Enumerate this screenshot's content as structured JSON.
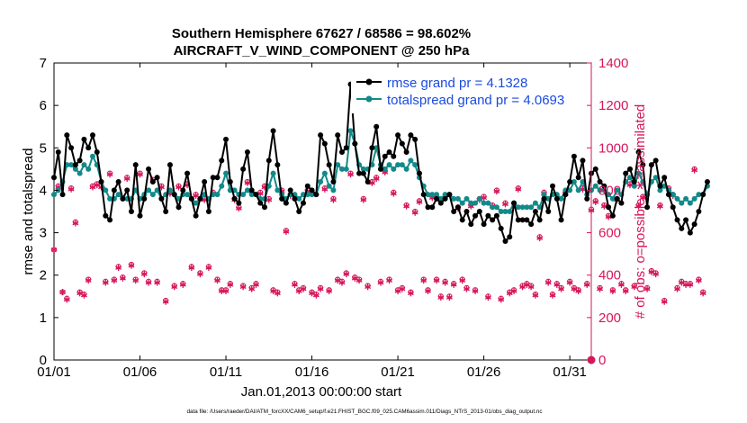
{
  "chart_data": {
    "type": "line",
    "title": "Southern Hemisphere 67627 / 68586 = 98.602%",
    "subtitle": "AIRCRAFT_V_WIND_COMPONENT @ 250 hPa",
    "xlabel": "Jan.01,2013 00:00:00 start",
    "ylabel_left": "rmse and totalspread",
    "ylabel_right": "# of obs: o=possible; ∗=assimilated",
    "footnote": "data file: /Users/raeder/DAI/ATM_forcXX/CAM6_setup/f.e21.FHIST_BGC.f09_025.CAM6assim.011/Diags_NTrS_2013-01/obs_diag_output.nc",
    "xlim": [
      0,
      31.25
    ],
    "ylim_left": [
      0,
      7
    ],
    "ylim_right": [
      0,
      1400
    ],
    "x_ticks": [
      0,
      5,
      10,
      15,
      20,
      25,
      30
    ],
    "x_ticklabels": [
      "01/01",
      "01/06",
      "01/11",
      "01/16",
      "01/21",
      "01/26",
      "01/31"
    ],
    "y_ticks_left": [
      "0",
      "1",
      "2",
      "3",
      "4",
      "5",
      "6",
      "7"
    ],
    "y_ticks_right": [
      "0",
      "200",
      "400",
      "600",
      "800",
      "1000",
      "1200",
      "1400"
    ],
    "legend": [
      "rmse grand pr = 4.1328",
      "totalspread grand pr = 4.0693"
    ],
    "legend_position": "top-right",
    "colors": {
      "rmse": "#000000",
      "spread": "#138a8a",
      "obs": "#d6155a",
      "right_axis": "#d6155a"
    },
    "series": [
      {
        "name": "rmse",
        "x_start": 0,
        "x_step": 0.25,
        "values": [
          4.3,
          4.9,
          3.9,
          5.3,
          5.0,
          4.6,
          4.7,
          5.2,
          5.0,
          5.3,
          4.9,
          4.2,
          3.4,
          3.3,
          4.0,
          4.2,
          3.8,
          4.0,
          3.5,
          4.6,
          3.4,
          3.8,
          4.5,
          4.2,
          4.3,
          3.8,
          3.5,
          4.6,
          3.9,
          3.6,
          4.0,
          4.4,
          3.8,
          3.4,
          3.8,
          4.2,
          3.5,
          4.3,
          4.3,
          4.7,
          5.2,
          4.2,
          3.8,
          3.7,
          4.5,
          4.9,
          4.0,
          3.9,
          3.7,
          3.6,
          4.7,
          5.4,
          4.6,
          3.8,
          3.7,
          4.0,
          3.8,
          3.5,
          3.7,
          4.1,
          4.0,
          3.9,
          5.3,
          5.1,
          4.6,
          4.2,
          5.3,
          4.9,
          5.0,
          6.5,
          5.1,
          4.4,
          4.4,
          4.2,
          5.0,
          5.5,
          4.5,
          4.8,
          4.9,
          4.8,
          5.3,
          5.1,
          4.9,
          5.3,
          5.2,
          4.4,
          3.9,
          3.6,
          3.6,
          3.8,
          3.7,
          3.8,
          3.9,
          3.5,
          3.6,
          3.3,
          3.5,
          3.2,
          3.4,
          3.5,
          3.2,
          3.4,
          3.3,
          3.4,
          3.1,
          2.8,
          2.9,
          3.7,
          3.3,
          3.3,
          3.3,
          3.2,
          3.5,
          3.3,
          3.8,
          3.5,
          4.1,
          3.8,
          3.3,
          3.9,
          4.2,
          4.8,
          4.3,
          4.7,
          3.8,
          4.4,
          4.5,
          4.2,
          4.1,
          3.6,
          3.4,
          3.8,
          3.7,
          4.4,
          4.5,
          4.2,
          4.9,
          4.6,
          3.6,
          4.6,
          4.7,
          4.1,
          4.3,
          3.9,
          3.6,
          3.3,
          3.1,
          3.3,
          3.0,
          3.2,
          3.5,
          3.9,
          4.2
        ]
      },
      {
        "name": "totalspread",
        "x_start": 0,
        "x_step": 0.25,
        "values": [
          3.9,
          4.0,
          4.2,
          4.6,
          4.6,
          4.5,
          4.4,
          4.6,
          4.5,
          4.8,
          4.6,
          4.2,
          4.0,
          3.8,
          3.8,
          3.9,
          3.8,
          3.8,
          3.8,
          4.0,
          3.8,
          3.9,
          4.0,
          3.9,
          4.0,
          3.8,
          3.9,
          4.0,
          3.9,
          3.8,
          3.9,
          3.9,
          3.8,
          3.7,
          3.8,
          3.9,
          3.8,
          3.9,
          3.9,
          4.1,
          4.4,
          4.0,
          4.0,
          3.9,
          3.9,
          4.0,
          3.9,
          3.9,
          3.8,
          3.8,
          4.1,
          4.4,
          4.0,
          3.9,
          3.8,
          3.9,
          3.9,
          3.8,
          3.9,
          3.9,
          3.9,
          3.9,
          4.2,
          4.4,
          4.1,
          4.0,
          4.6,
          4.5,
          4.5,
          5.4,
          5.1,
          4.6,
          4.5,
          4.5,
          4.6,
          5.0,
          4.6,
          4.5,
          4.6,
          4.5,
          4.6,
          4.6,
          4.5,
          4.7,
          4.6,
          4.3,
          4.1,
          3.9,
          3.9,
          3.9,
          3.8,
          3.9,
          3.9,
          3.8,
          3.8,
          3.7,
          3.8,
          3.7,
          3.7,
          3.8,
          3.7,
          3.7,
          3.6,
          3.6,
          3.5,
          3.5,
          3.5,
          3.7,
          3.6,
          3.6,
          3.6,
          3.6,
          3.7,
          3.6,
          3.9,
          3.8,
          3.9,
          3.9,
          3.8,
          4.0,
          4.0,
          4.2,
          4.0,
          4.2,
          3.9,
          4.0,
          4.1,
          4.0,
          4.0,
          3.9,
          3.8,
          4.0,
          3.9,
          4.2,
          4.3,
          4.1,
          4.4,
          4.2,
          3.9,
          4.2,
          4.3,
          4.0,
          4.1,
          4.0,
          3.9,
          3.8,
          3.7,
          3.8,
          3.7,
          3.8,
          3.9,
          3.9,
          4.1
        ]
      },
      {
        "name": "obs possible",
        "axis": "right",
        "x_start": 0,
        "x_step": 0.25,
        "values": [
          520,
          820,
          320,
          290,
          810,
          650,
          320,
          310,
          380,
          820,
          830,
          820,
          370,
          880,
          380,
          440,
          390,
          860,
          450,
          380,
          880,
          410,
          370,
          850,
          370,
          820,
          280,
          790,
          350,
          820,
          360,
          830,
          440,
          780,
          410,
          760,
          440,
          790,
          380,
          330,
          330,
          360,
          760,
          720,
          350,
          840,
          340,
          360,
          790,
          820,
          760,
          330,
          320,
          800,
          610,
          780,
          360,
          330,
          340,
          800,
          320,
          310,
          340,
          810,
          330,
          760,
          380,
          370,
          410,
          880,
          390,
          380,
          760,
          350,
          840,
          860,
          370,
          890,
          380,
          790,
          330,
          340,
          730,
          320,
          700,
          750,
          380,
          330,
          770,
          380,
          300,
          370,
          300,
          360,
          720,
          380,
          340,
          730,
          330,
          760,
          770,
          300,
          730,
          800,
          290,
          740,
          320,
          330,
          810,
          350,
          360,
          350,
          310,
          580,
          790,
          370,
          310,
          360,
          340,
          790,
          370,
          340,
          330,
          810,
          360,
          710,
          750,
          340,
          730,
          680,
          330,
          760,
          360,
          330,
          830,
          350,
          730,
          770,
          340,
          420,
          410,
          730,
          280,
          810,
          780,
          340,
          370,
          360,
          360,
          900,
          380,
          320
        ]
      },
      {
        "name": "obs assimilated",
        "axis": "right",
        "x_start": 0,
        "x_step": 0.25,
        "values": [
          520,
          815,
          320,
          285,
          805,
          645,
          315,
          305,
          375,
          815,
          825,
          815,
          365,
          875,
          375,
          435,
          385,
          855,
          445,
          375,
          875,
          405,
          365,
          845,
          365,
          815,
          275,
          785,
          345,
          815,
          355,
          825,
          435,
          775,
          405,
          755,
          435,
          785,
          375,
          325,
          325,
          355,
          755,
          715,
          345,
          835,
          335,
          355,
          785,
          815,
          755,
          325,
          315,
          795,
          605,
          775,
          355,
          325,
          335,
          795,
          315,
          305,
          335,
          805,
          325,
          755,
          375,
          365,
          405,
          875,
          385,
          375,
          755,
          345,
          835,
          855,
          365,
          885,
          375,
          785,
          325,
          335,
          725,
          315,
          695,
          745,
          375,
          325,
          765,
          375,
          295,
          365,
          295,
          355,
          715,
          375,
          335,
          725,
          325,
          755,
          765,
          295,
          725,
          795,
          285,
          735,
          315,
          325,
          805,
          345,
          355,
          345,
          305,
          575,
          785,
          365,
          305,
          355,
          335,
          785,
          365,
          335,
          325,
          805,
          355,
          705,
          745,
          335,
          725,
          675,
          325,
          755,
          355,
          325,
          825,
          345,
          725,
          765,
          335,
          415,
          405,
          725,
          275,
          805,
          775,
          335,
          365,
          355,
          355,
          895,
          375,
          315
        ]
      }
    ],
    "extra_points": [
      {
        "x": 31.25,
        "y_right": 0,
        "series": "obs"
      }
    ]
  }
}
